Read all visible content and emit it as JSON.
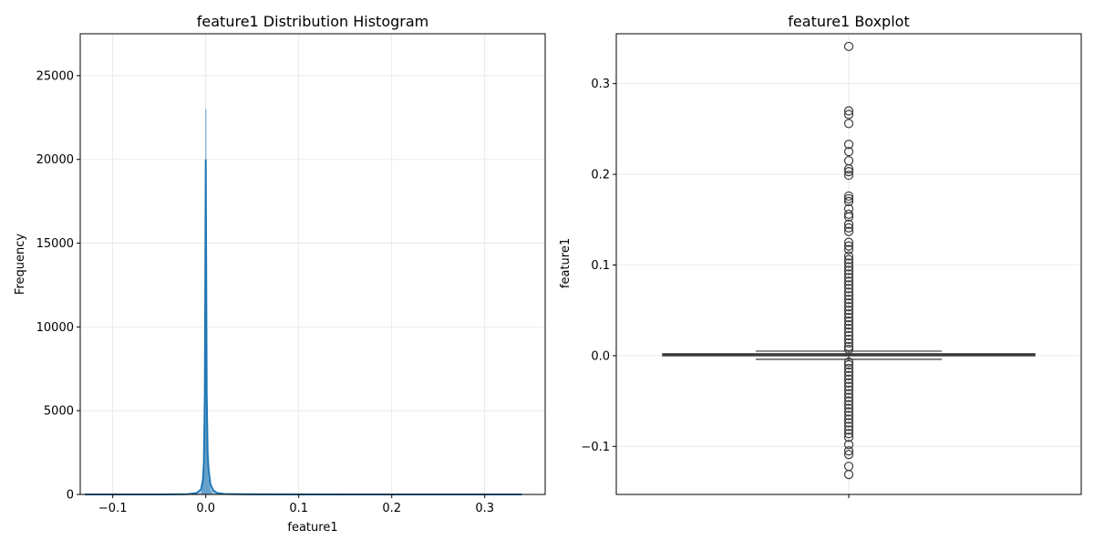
{
  "chart_data": [
    {
      "type": "histogram",
      "title": "feature1 Distribution Histogram",
      "xlabel": "feature1",
      "ylabel": "Frequency",
      "xlim": [
        -0.135,
        0.365
      ],
      "ylim": [
        0,
        27500
      ],
      "xticks": [
        -0.1,
        0.0,
        0.1,
        0.2,
        0.3
      ],
      "xtick_labels": [
        "−0.1",
        "0.0",
        "0.1",
        "0.2",
        "0.3"
      ],
      "yticks": [
        0,
        5000,
        10000,
        15000,
        20000,
        25000
      ],
      "ytick_labels": [
        "0",
        "5000",
        "10000",
        "15000",
        "20000",
        "25000"
      ],
      "grid": true,
      "color": "#1f77b4",
      "bar_fill": "#7aaed4",
      "bars": {
        "x": [
          -0.004,
          -0.003,
          -0.002,
          -0.001,
          0.0,
          0.001,
          0.002,
          0.003,
          0.004,
          0.005,
          0.006,
          0.008,
          0.01
        ],
        "values": [
          300,
          800,
          1800,
          5000,
          23000,
          6000,
          2200,
          900,
          500,
          250,
          150,
          60,
          20
        ]
      },
      "kde": {
        "x": [
          -0.13,
          -0.05,
          -0.02,
          -0.01,
          -0.005,
          -0.003,
          -0.002,
          -0.001,
          -0.0005,
          0.0,
          0.0005,
          0.001,
          0.002,
          0.003,
          0.005,
          0.008,
          0.012,
          0.02,
          0.05,
          0.34
        ],
        "values": [
          0,
          0,
          15,
          80,
          300,
          900,
          1900,
          6000,
          13000,
          20000,
          13000,
          6000,
          2500,
          1500,
          600,
          250,
          90,
          30,
          5,
          0
        ]
      }
    },
    {
      "type": "boxplot",
      "title": "feature1 Boxplot",
      "ylabel": "feature1",
      "ylim": [
        -0.153,
        0.355
      ],
      "yticks": [
        -0.1,
        0.0,
        0.1,
        0.2,
        0.3
      ],
      "ytick_labels": [
        "−0.1",
        "0.0",
        "0.1",
        "0.2",
        "0.3"
      ],
      "grid": true,
      "box": {
        "whislo": -0.004,
        "q1": 0.0,
        "median": 0.001,
        "q3": 0.002,
        "whishi": 0.005
      },
      "outliers": [
        0.341,
        0.27,
        0.266,
        0.256,
        0.233,
        0.225,
        0.215,
        0.206,
        0.203,
        0.199,
        0.176,
        0.173,
        0.17,
        0.162,
        0.156,
        0.153,
        0.145,
        0.141,
        0.137,
        0.125,
        0.121,
        0.117,
        0.11,
        0.106,
        0.102,
        0.098,
        0.094,
        0.09,
        0.086,
        0.082,
        0.078,
        0.074,
        0.07,
        0.066,
        0.062,
        0.058,
        0.054,
        0.05,
        0.046,
        0.042,
        0.038,
        0.034,
        0.03,
        0.026,
        0.022,
        0.018,
        0.014,
        0.01,
        0.007,
        -0.007,
        -0.01,
        -0.014,
        -0.018,
        -0.022,
        -0.026,
        -0.03,
        -0.034,
        -0.038,
        -0.042,
        -0.046,
        -0.05,
        -0.054,
        -0.058,
        -0.062,
        -0.066,
        -0.07,
        -0.074,
        -0.078,
        -0.082,
        -0.086,
        -0.09,
        -0.098,
        -0.105,
        -0.109,
        -0.122,
        -0.131
      ]
    }
  ]
}
